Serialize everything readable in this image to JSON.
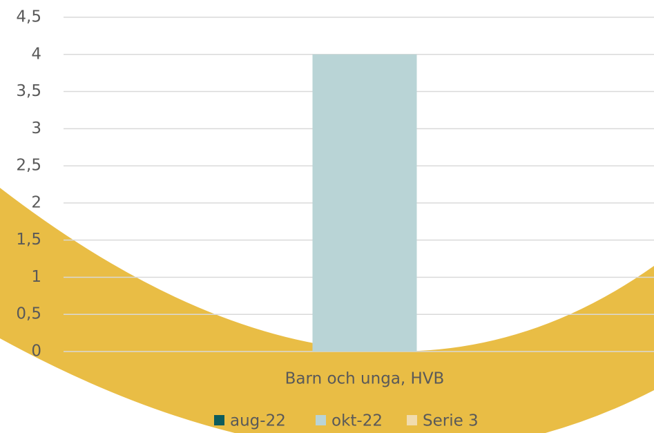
{
  "chart_data": {
    "type": "bar",
    "categories": [
      "Barn och unga, HVB"
    ],
    "series": [
      {
        "name": "aug-22",
        "color": "#0d5c5c",
        "values": [
          0
        ]
      },
      {
        "name": "okt-22",
        "color": "#b9d4d6",
        "values": [
          4
        ]
      },
      {
        "name": "Serie 3",
        "color": "#f1dcae",
        "values": [
          0
        ]
      }
    ],
    "ylim": [
      0,
      4.5
    ],
    "yticks": [
      0,
      {
        "value": 0.5,
        "label": "0,5"
      },
      1,
      {
        "value": 1.5,
        "label": "1,5"
      },
      2,
      {
        "value": 2.5,
        "label": "2,5"
      },
      3,
      {
        "value": 3.5,
        "label": "3,5"
      },
      4,
      {
        "value": 4.5,
        "label": "4,5"
      }
    ],
    "grid": true,
    "legend": "bottom"
  }
}
